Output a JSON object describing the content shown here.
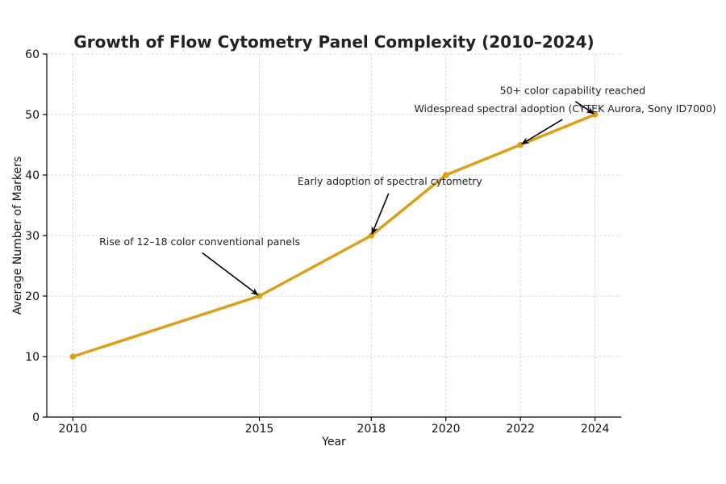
{
  "chart_data": {
    "type": "line",
    "title": "Growth of Flow Cytometry Panel Complexity (2010–2024)",
    "xlabel": "Year",
    "ylabel": "Average Number of Markers",
    "x": [
      2010,
      2015,
      2018,
      2020,
      2022,
      2024
    ],
    "series": [
      {
        "name": "Average Number of Markers",
        "values": [
          10,
          20,
          30,
          40,
          45,
          50
        ],
        "color": "#DAA01A"
      }
    ],
    "xlim": [
      2009.3,
      2024.7
    ],
    "ylim": [
      0,
      60
    ],
    "xticks": [
      2010,
      2015,
      2018,
      2020,
      2022,
      2024
    ],
    "yticks": [
      0,
      10,
      20,
      30,
      40,
      50,
      60
    ],
    "grid": true,
    "annotations": [
      {
        "text": "Rise of 12–18 color conventional panels",
        "x": 2015,
        "y": 20,
        "text_x": 2013.4,
        "text_y": 28.4
      },
      {
        "text": "Early adoption of spectral cytometry",
        "x": 2018,
        "y": 30,
        "text_x": 2018.5,
        "text_y": 38.4
      },
      {
        "text": "Widespread spectral adoption (CYTEK Aurora, Sony ID7000)",
        "x": 2022,
        "y": 45,
        "text_x": 2023.2,
        "text_y": 50.4
      },
      {
        "text": "50+ color capability reached",
        "x": 2024,
        "y": 50,
        "text_x": 2023.4,
        "text_y": 53.4
      }
    ]
  }
}
